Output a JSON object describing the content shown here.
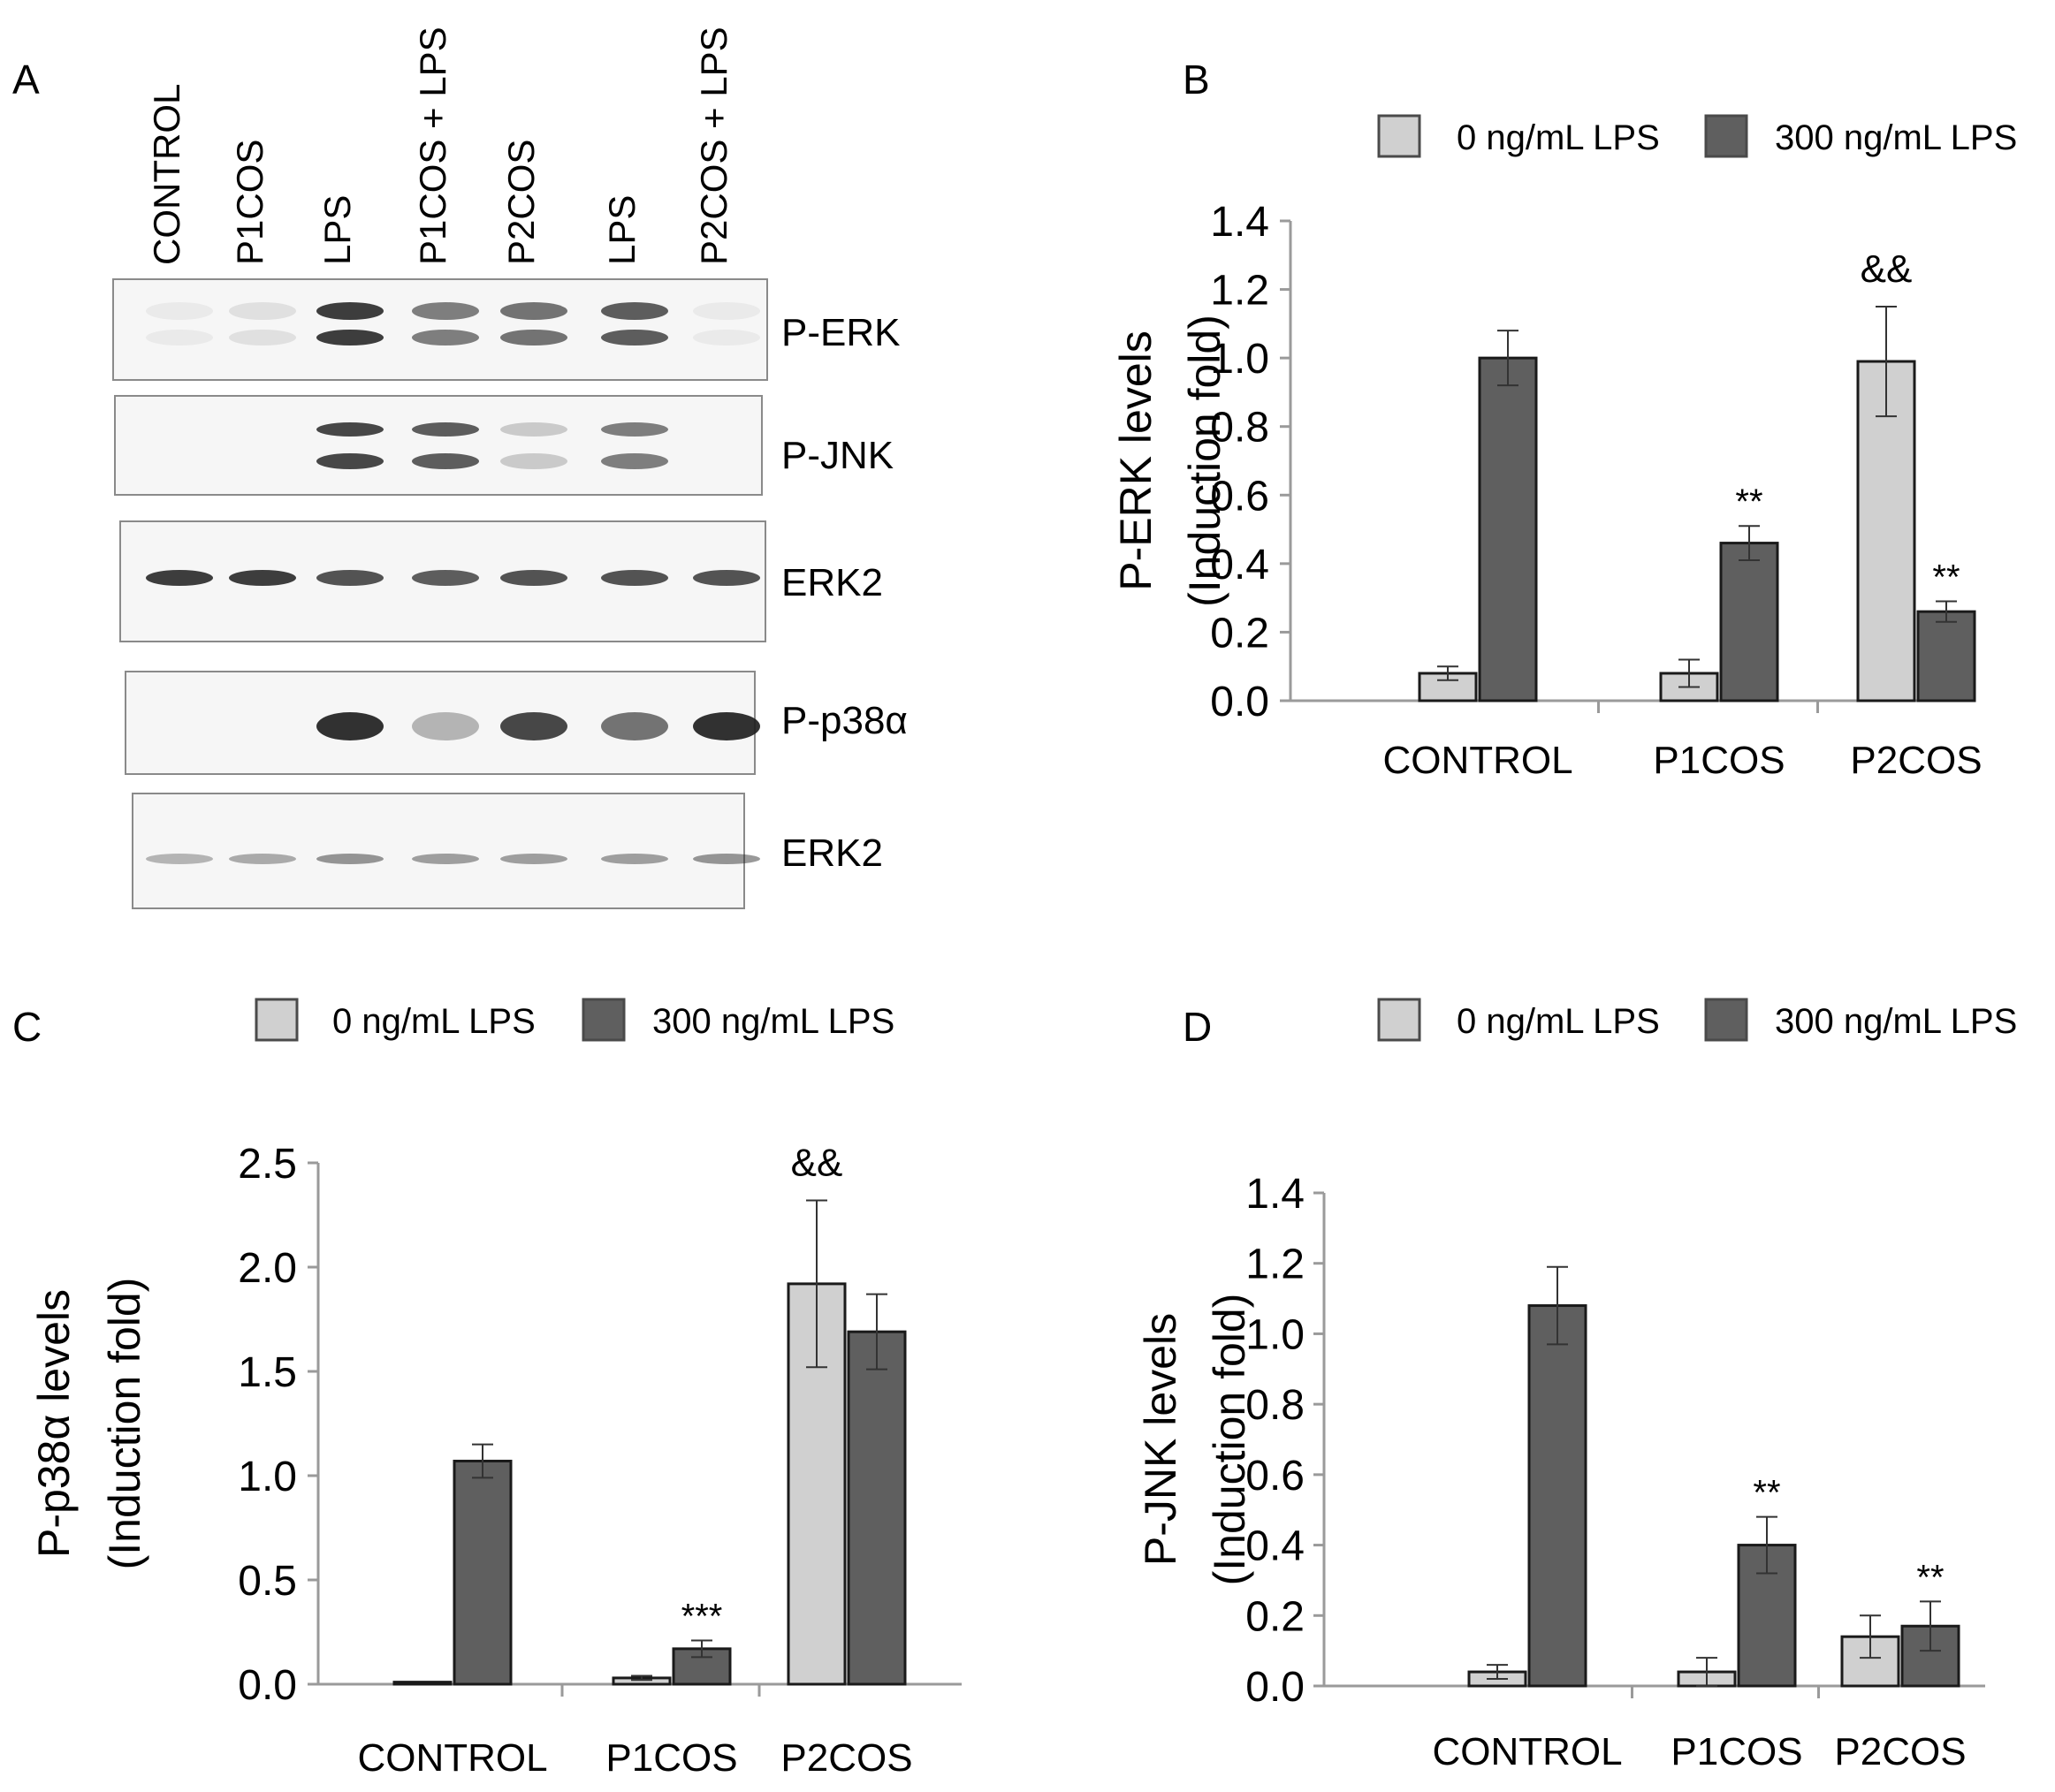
{
  "panel_letters": [
    "A",
    "B",
    "C",
    "D"
  ],
  "western_blot": {
    "lane_labels": [
      "CONTROL",
      "P1COS",
      "LPS",
      "P1COS + LPS",
      "P2COS",
      "LPS",
      "P2COS + LPS"
    ],
    "blots": [
      {
        "label": "P-ERK",
        "band_intensity": [
          0.05,
          0.1,
          0.85,
          0.55,
          0.6,
          0.7,
          0.05
        ]
      },
      {
        "label": "P-JNK",
        "band_intensity": [
          0.0,
          0.0,
          0.8,
          0.7,
          0.2,
          0.55,
          0.0
        ]
      },
      {
        "label": "ERK2",
        "band_intensity": [
          0.85,
          0.85,
          0.75,
          0.7,
          0.75,
          0.75,
          0.75
        ]
      },
      {
        "label": "P-p38α",
        "band_intensity": [
          0.0,
          0.0,
          0.9,
          0.3,
          0.8,
          0.6,
          0.9
        ]
      },
      {
        "label": "ERK2",
        "band_intensity": [
          0.3,
          0.35,
          0.45,
          0.4,
          0.4,
          0.4,
          0.45
        ]
      }
    ]
  },
  "colors": {
    "bar_0": "#d0d0d0",
    "bar_300": "#5f5f5f",
    "bar_stroke": "#1a1a1a",
    "axis": "#9a9a9a",
    "text": "#1a1a1a",
    "band": "#1c1c1c",
    "blot_bg": "#f6f6f6"
  },
  "chart_data": [
    {
      "panel": "B",
      "type": "bar",
      "categories": [
        "CONTROL",
        "P1COS",
        "P2COS"
      ],
      "series": [
        {
          "name": "0 ng/mL LPS",
          "values": [
            0.08,
            0.08,
            0.99
          ],
          "errors": [
            0.02,
            0.04,
            0.16
          ]
        },
        {
          "name": "300 ng/mL LPS",
          "values": [
            1.0,
            0.46,
            0.26
          ],
          "errors": [
            0.08,
            0.05,
            0.03
          ]
        }
      ],
      "annotations": [
        {
          "category": "P1COS",
          "series": "300 ng/mL LPS",
          "text": "**"
        },
        {
          "category": "P2COS",
          "series": "0 ng/mL LPS",
          "text": "&&"
        },
        {
          "category": "P2COS",
          "series": "300 ng/mL LPS",
          "text": "**"
        }
      ],
      "ylabel": [
        "P-ERK levels",
        "(Induction fold)"
      ],
      "ylim": [
        0,
        1.4
      ],
      "yticks": [
        "0.0",
        "0.2",
        "0.4",
        "0.6",
        "0.8",
        "1.0",
        "1.2",
        "1.4"
      ],
      "legend": [
        "0 ng/mL LPS",
        "300 ng/mL LPS"
      ]
    },
    {
      "panel": "C",
      "type": "bar",
      "categories": [
        "CONTROL",
        "P1COS",
        "P2COS"
      ],
      "series": [
        {
          "name": "0 ng/mL LPS",
          "values": [
            0.01,
            0.03,
            1.92
          ],
          "errors": [
            0.0,
            0.01,
            0.4
          ]
        },
        {
          "name": "300 ng/mL LPS",
          "values": [
            1.07,
            0.17,
            1.69
          ],
          "errors": [
            0.08,
            0.04,
            0.18
          ]
        }
      ],
      "annotations": [
        {
          "category": "P1COS",
          "series": "300 ng/mL LPS",
          "text": "***"
        },
        {
          "category": "P2COS",
          "series": "0 ng/mL LPS",
          "text": "&&"
        }
      ],
      "ylabel": [
        "P-p38α levels",
        "(Induction fold)"
      ],
      "ylim": [
        0,
        2.5
      ],
      "yticks": [
        "0.0",
        "0.5",
        "1.0",
        "1.5",
        "2.0",
        "2.5"
      ],
      "legend": [
        "0 ng/mL LPS",
        "300 ng/mL LPS"
      ]
    },
    {
      "panel": "D",
      "type": "bar",
      "categories": [
        "CONTROL",
        "P1COS",
        "P2COS"
      ],
      "series": [
        {
          "name": "0 ng/mL LPS",
          "values": [
            0.04,
            0.04,
            0.14
          ],
          "errors": [
            0.02,
            0.04,
            0.06
          ]
        },
        {
          "name": "300 ng/mL LPS",
          "values": [
            1.08,
            0.4,
            0.17
          ],
          "errors": [
            0.11,
            0.08,
            0.07
          ]
        }
      ],
      "annotations": [
        {
          "category": "P1COS",
          "series": "300 ng/mL LPS",
          "text": "**"
        },
        {
          "category": "P2COS",
          "series": "300 ng/mL LPS",
          "text": "**"
        }
      ],
      "ylabel": [
        "P-JNK levels",
        "(Induction fold)"
      ],
      "ylim": [
        0,
        1.4
      ],
      "yticks": [
        "0.0",
        "0.2",
        "0.4",
        "0.6",
        "0.8",
        "1.0",
        "1.2",
        "1.4"
      ],
      "legend": [
        "0 ng/mL LPS",
        "300 ng/mL LPS"
      ]
    }
  ]
}
